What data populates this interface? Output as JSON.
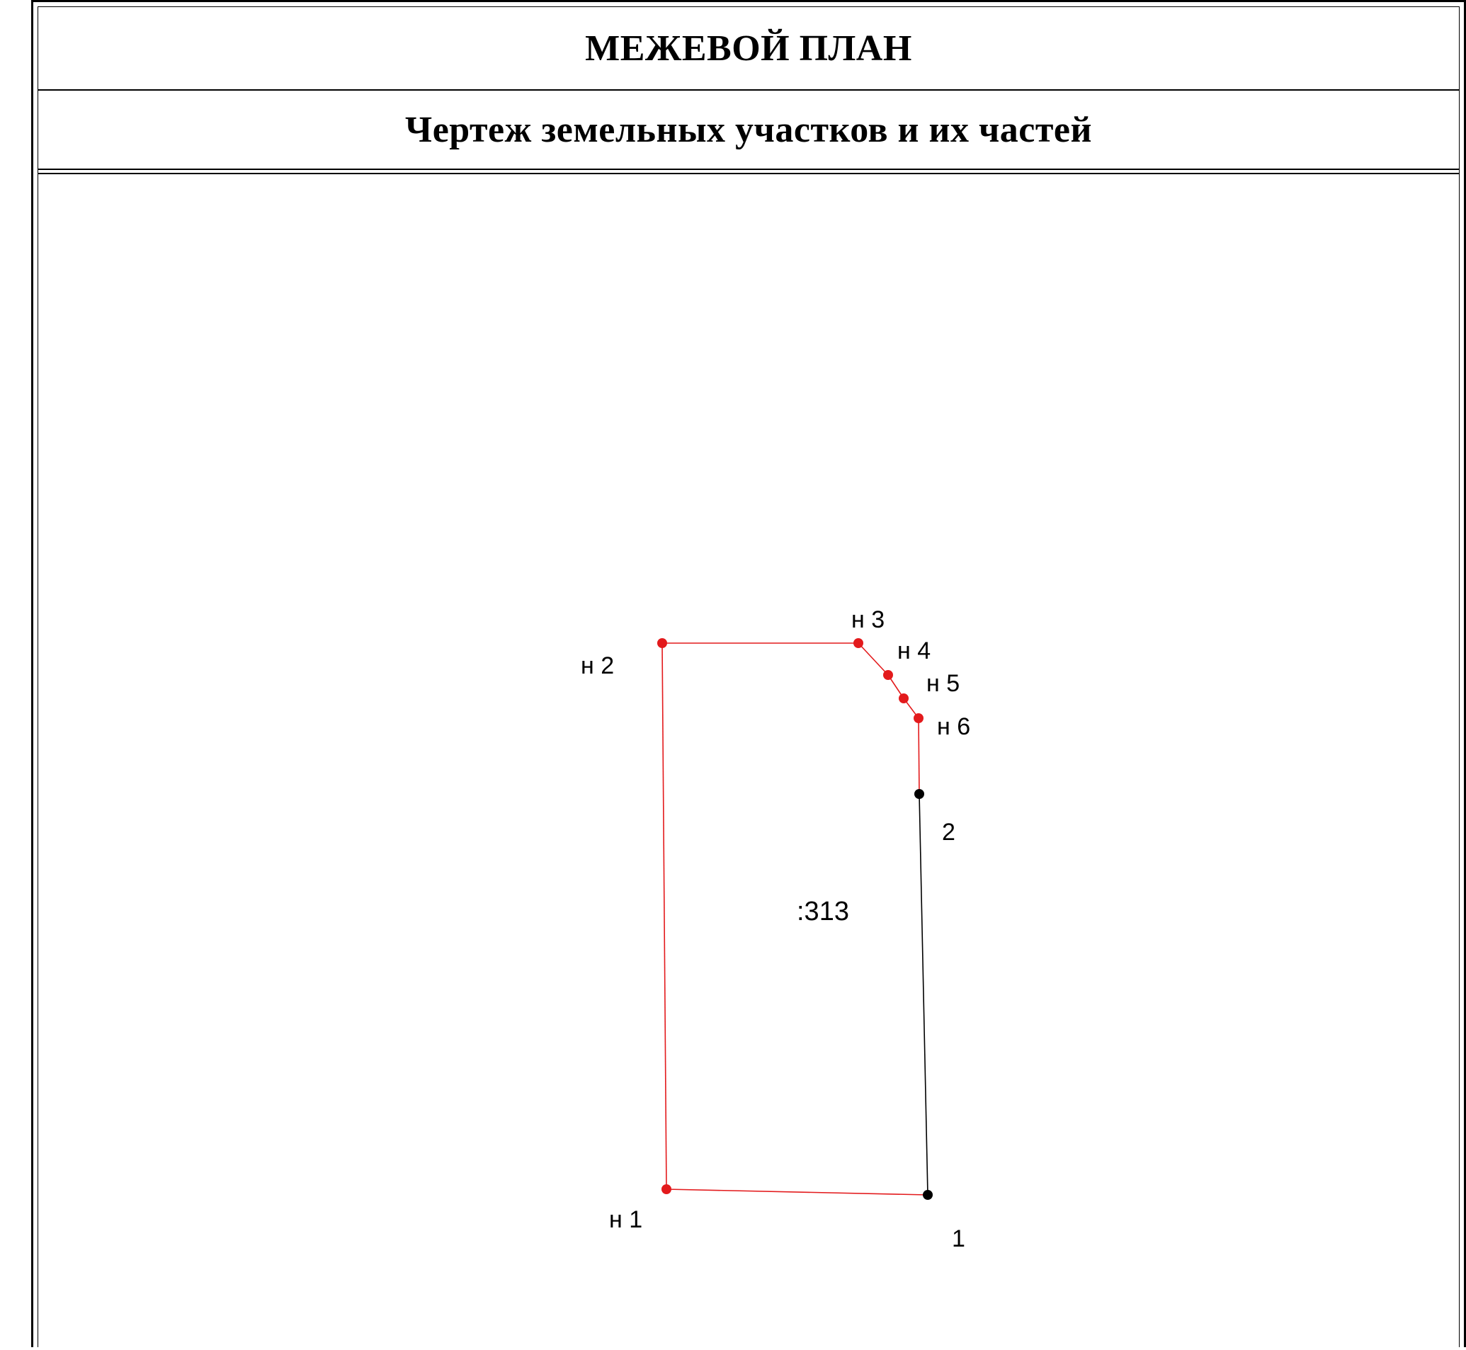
{
  "header": {
    "title": "МЕЖЕВОЙ ПЛАН",
    "subtitle": "Чертеж земельных участков и их частей"
  },
  "plan": {
    "parcel_label": ":313",
    "new_boundary_color": "#e31a1c",
    "existing_boundary_color": "#000000",
    "points": [
      {
        "id": "n1",
        "label": "н 1",
        "kind": "new"
      },
      {
        "id": "n2",
        "label": "н 2",
        "kind": "new"
      },
      {
        "id": "n3",
        "label": "н 3",
        "kind": "new"
      },
      {
        "id": "n4",
        "label": "н 4",
        "kind": "new"
      },
      {
        "id": "n5",
        "label": "н 5",
        "kind": "new"
      },
      {
        "id": "n6",
        "label": "н 6",
        "kind": "new"
      },
      {
        "id": "p2",
        "label": "2",
        "kind": "existing"
      },
      {
        "id": "p1",
        "label": "1",
        "kind": "existing"
      }
    ]
  }
}
